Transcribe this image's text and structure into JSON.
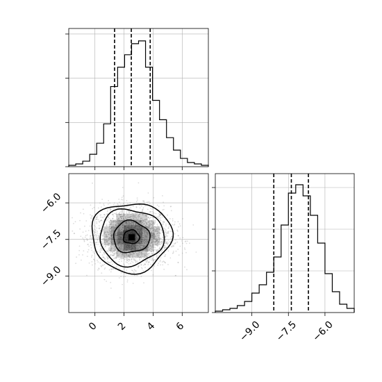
{
  "chart_data": {
    "type": "corner",
    "panels": [
      {
        "id": "hist-param1",
        "type": "histogram",
        "x_range": [
          -1.8,
          7.8
        ],
        "y_range": [
          0,
          1.0
        ],
        "bins": [
          [
            -1.8,
            0.01
          ],
          [
            -1.32,
            0.02
          ],
          [
            -0.84,
            0.04
          ],
          [
            -0.36,
            0.09
          ],
          [
            0.12,
            0.17
          ],
          [
            0.6,
            0.31
          ],
          [
            1.08,
            0.58
          ],
          [
            1.56,
            0.72
          ],
          [
            2.04,
            0.81
          ],
          [
            2.52,
            0.89
          ],
          [
            3.0,
            0.91
          ],
          [
            3.48,
            0.72
          ],
          [
            3.96,
            0.48
          ],
          [
            4.44,
            0.34
          ],
          [
            4.92,
            0.21
          ],
          [
            5.4,
            0.12
          ],
          [
            5.88,
            0.06
          ],
          [
            6.36,
            0.03
          ],
          [
            6.84,
            0.02
          ],
          [
            7.32,
            0.01
          ]
        ],
        "quantiles": [
          1.35,
          2.5,
          3.8
        ],
        "x_ticks": [
          0,
          2,
          4,
          6
        ],
        "y_tick_fractions": [
          0.0,
          0.32,
          0.64,
          0.96
        ]
      },
      {
        "id": "hist-param2",
        "type": "histogram",
        "x_range": [
          -10.5,
          -4.8
        ],
        "y_range": [
          0,
          1.0
        ],
        "bins": [
          [
            -10.5,
            0.01
          ],
          [
            -10.2,
            0.02
          ],
          [
            -9.9,
            0.03
          ],
          [
            -9.6,
            0.05
          ],
          [
            -9.3,
            0.08
          ],
          [
            -9.0,
            0.14
          ],
          [
            -8.7,
            0.2
          ],
          [
            -8.4,
            0.29
          ],
          [
            -8.1,
            0.4
          ],
          [
            -7.8,
            0.63
          ],
          [
            -7.5,
            0.86
          ],
          [
            -7.2,
            0.92
          ],
          [
            -6.9,
            0.84
          ],
          [
            -6.6,
            0.7
          ],
          [
            -6.3,
            0.5
          ],
          [
            -6.0,
            0.28
          ],
          [
            -5.7,
            0.15
          ],
          [
            -5.4,
            0.06
          ],
          [
            -5.1,
            0.03
          ]
        ],
        "quantiles": [
          -8.1,
          -7.38,
          -6.68
        ],
        "x_ticks": [
          -9.0,
          -7.5,
          -6.0
        ],
        "x_tick_labels": [
          "−9.0",
          "−7.5",
          "−6.0"
        ],
        "y_tick_fractions": [
          0.0,
          0.3,
          0.6,
          0.9
        ]
      },
      {
        "id": "scatter-2d",
        "type": "scatter-contour",
        "x_range": [
          -1.8,
          7.8
        ],
        "y_range": [
          -10.5,
          -4.8
        ],
        "x_ticks": [
          0,
          2,
          4,
          6
        ],
        "y_ticks": [
          -6.0,
          -7.5,
          -9.0
        ],
        "y_tick_labels": [
          "−6.0",
          "−7.5",
          "−9.0"
        ],
        "center": [
          2.5,
          -7.4
        ],
        "spread": [
          1.35,
          0.62
        ],
        "contour_levels": [
          {
            "rx": 0.55,
            "ry": 0.28
          },
          {
            "rx": 1.25,
            "ry": 0.65
          },
          {
            "rx": 2.2,
            "ry": 1.15
          },
          {
            "rx": 2.75,
            "ry": 1.42
          }
        ]
      }
    ]
  }
}
